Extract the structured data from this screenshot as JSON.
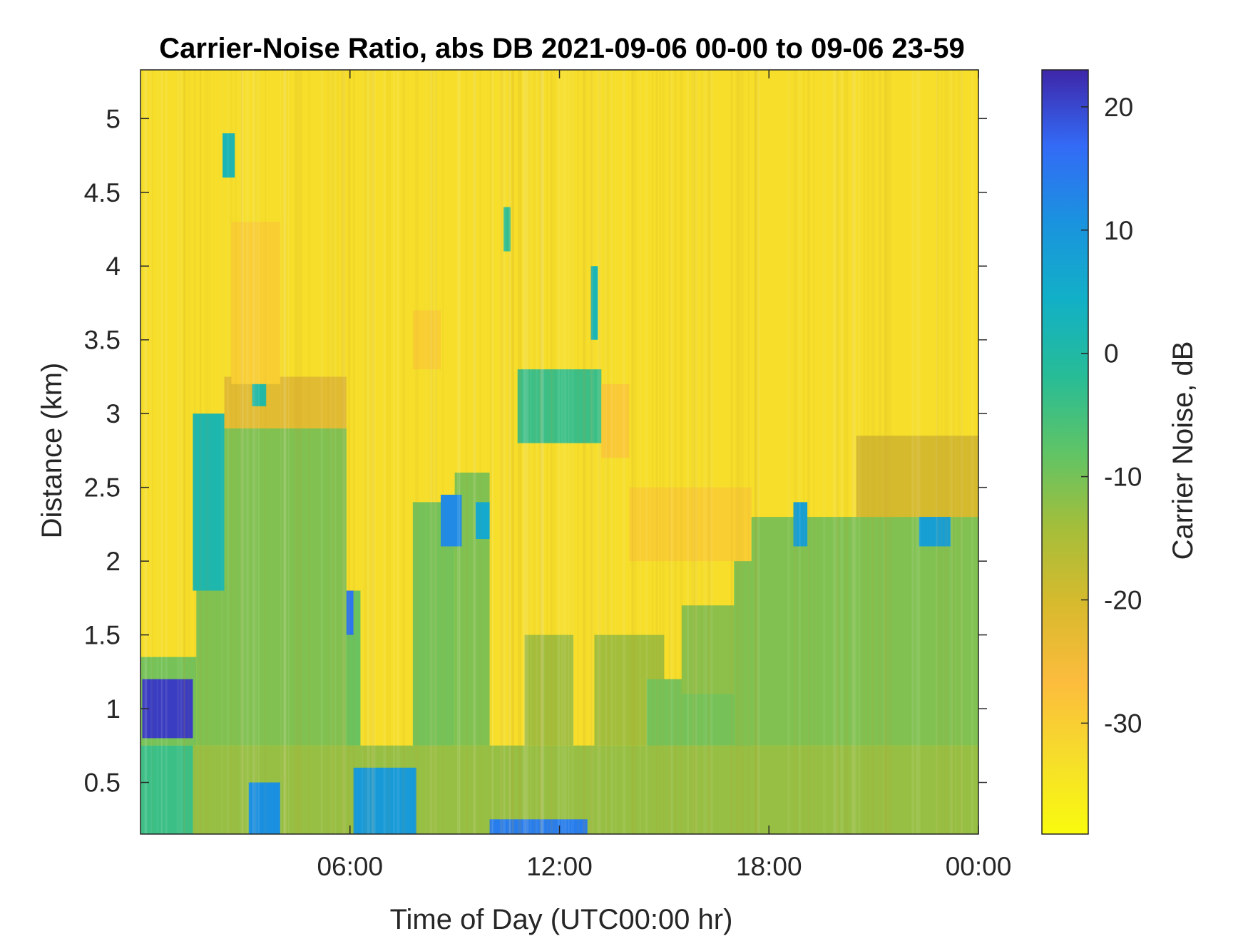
{
  "chart_data": {
    "type": "heatmap",
    "title": "Carrier-Noise Ratio, abs DB 2021-09-06 00-00 to 09-06 23-59",
    "xlabel": "Time of Day (UTC00:00 hr)",
    "ylabel": "Distance (km)",
    "colorbar_label": "Carrier Noise, dB",
    "xlim": [
      0,
      24
    ],
    "ylim": [
      0.15,
      5.33
    ],
    "clim": [
      -39,
      23
    ],
    "colormap": "parula",
    "x_ticks": [
      {
        "value": 6,
        "label": "06:00"
      },
      {
        "value": 12,
        "label": "12:00"
      },
      {
        "value": 18,
        "label": "18:00"
      },
      {
        "value": 24,
        "label": "00:00"
      }
    ],
    "y_ticks": [
      {
        "value": 0.5,
        "label": "0.5"
      },
      {
        "value": 1,
        "label": "1"
      },
      {
        "value": 1.5,
        "label": "1.5"
      },
      {
        "value": 2,
        "label": "2"
      },
      {
        "value": 2.5,
        "label": "2.5"
      },
      {
        "value": 3,
        "label": "3"
      },
      {
        "value": 3.5,
        "label": "3.5"
      },
      {
        "value": 4,
        "label": "4"
      },
      {
        "value": 4.5,
        "label": "4.5"
      },
      {
        "value": 5,
        "label": "5"
      }
    ],
    "colorbar_ticks": [
      {
        "value": 20,
        "label": "20"
      },
      {
        "value": 10,
        "label": "10"
      },
      {
        "value": 0,
        "label": "0"
      },
      {
        "value": -10,
        "label": "-10"
      },
      {
        "value": -20,
        "label": "-20"
      },
      {
        "value": -30,
        "label": "-30"
      }
    ],
    "grid": false,
    "background_level_db": -33,
    "regions": [
      {
        "x": [
          0,
          24
        ],
        "y": [
          0.15,
          0.75
        ],
        "db": -13
      },
      {
        "x": [
          0,
          1.6
        ],
        "y": [
          0.75,
          1.35
        ],
        "db": -10
      },
      {
        "x": [
          0.05,
          1.5
        ],
        "y": [
          0.8,
          1.2
        ],
        "db": 21
      },
      {
        "x": [
          1.6,
          2.4
        ],
        "y": [
          0.75,
          2.2
        ],
        "db": -11
      },
      {
        "x": [
          2.4,
          5.9
        ],
        "y": [
          0.75,
          2.9
        ],
        "db": -11
      },
      {
        "x": [
          2.4,
          5.9
        ],
        "y": [
          2.9,
          3.25
        ],
        "db": -22
      },
      {
        "x": [
          5.9,
          6.3
        ],
        "y": [
          0.75,
          1.8
        ],
        "db": -9
      },
      {
        "x": [
          7.8,
          9.0
        ],
        "y": [
          0.75,
          2.4
        ],
        "db": -10
      },
      {
        "x": [
          9.0,
          10.0
        ],
        "y": [
          0.75,
          2.6
        ],
        "db": -11
      },
      {
        "x": [
          11.0,
          12.4
        ],
        "y": [
          0.75,
          1.5
        ],
        "db": -14
      },
      {
        "x": [
          13.0,
          15.0
        ],
        "y": [
          0.75,
          1.5
        ],
        "db": -14
      },
      {
        "x": [
          14.5,
          17.5
        ],
        "y": [
          0.75,
          1.2
        ],
        "db": -10
      },
      {
        "x": [
          15.5,
          19.5
        ],
        "y": [
          1.1,
          1.7
        ],
        "db": -12
      },
      {
        "x": [
          17.0,
          24
        ],
        "y": [
          0.75,
          2.3
        ],
        "db": -11
      },
      {
        "x": [
          20.5,
          24
        ],
        "y": [
          2.3,
          2.85
        ],
        "db": -20
      },
      {
        "x": [
          0,
          1.5
        ],
        "y": [
          0.15,
          0.75
        ],
        "db": -4
      },
      {
        "x": [
          3.1,
          4.0
        ],
        "y": [
          0.15,
          0.5
        ],
        "db": 11
      },
      {
        "x": [
          6.1,
          7.9
        ],
        "y": [
          0.15,
          0.6
        ],
        "db": 9
      },
      {
        "x": [
          10.0,
          12.8
        ],
        "y": [
          0.15,
          0.25
        ],
        "db": 14
      },
      {
        "x": [
          1.5,
          2.4
        ],
        "y": [
          1.8,
          3.0
        ],
        "db": 1
      },
      {
        "x": [
          5.9,
          6.1
        ],
        "y": [
          1.5,
          1.8
        ],
        "db": 15
      },
      {
        "x": [
          8.6,
          9.2
        ],
        "y": [
          2.1,
          2.45
        ],
        "db": 12
      },
      {
        "x": [
          9.6,
          10.0
        ],
        "y": [
          2.15,
          2.4
        ],
        "db": 6
      },
      {
        "x": [
          3.2,
          3.6
        ],
        "y": [
          3.05,
          3.25
        ],
        "db": 0
      },
      {
        "x": [
          2.35,
          2.7
        ],
        "y": [
          4.6,
          4.9
        ],
        "db": 2
      },
      {
        "x": [
          10.4,
          10.6
        ],
        "y": [
          4.1,
          4.4
        ],
        "db": -3
      },
      {
        "x": [
          12.9,
          13.1
        ],
        "y": [
          3.5,
          4.0
        ],
        "db": 2
      },
      {
        "x": [
          10.8,
          13.2
        ],
        "y": [
          2.8,
          3.3
        ],
        "db": -4
      },
      {
        "x": [
          18.7,
          19.1
        ],
        "y": [
          2.1,
          2.4
        ],
        "db": 8
      },
      {
        "x": [
          22.3,
          23.2
        ],
        "y": [
          2.1,
          2.3
        ],
        "db": 8
      },
      {
        "x": [
          2.6,
          4.0
        ],
        "y": [
          3.2,
          4.3
        ],
        "db": -30
      },
      {
        "x": [
          7.8,
          8.6
        ],
        "y": [
          3.3,
          3.7
        ],
        "db": -30
      },
      {
        "x": [
          13.2,
          14.0
        ],
        "y": [
          2.7,
          3.2
        ],
        "db": -29
      },
      {
        "x": [
          14.0,
          17.5
        ],
        "y": [
          2.0,
          2.5
        ],
        "db": -30
      }
    ]
  }
}
